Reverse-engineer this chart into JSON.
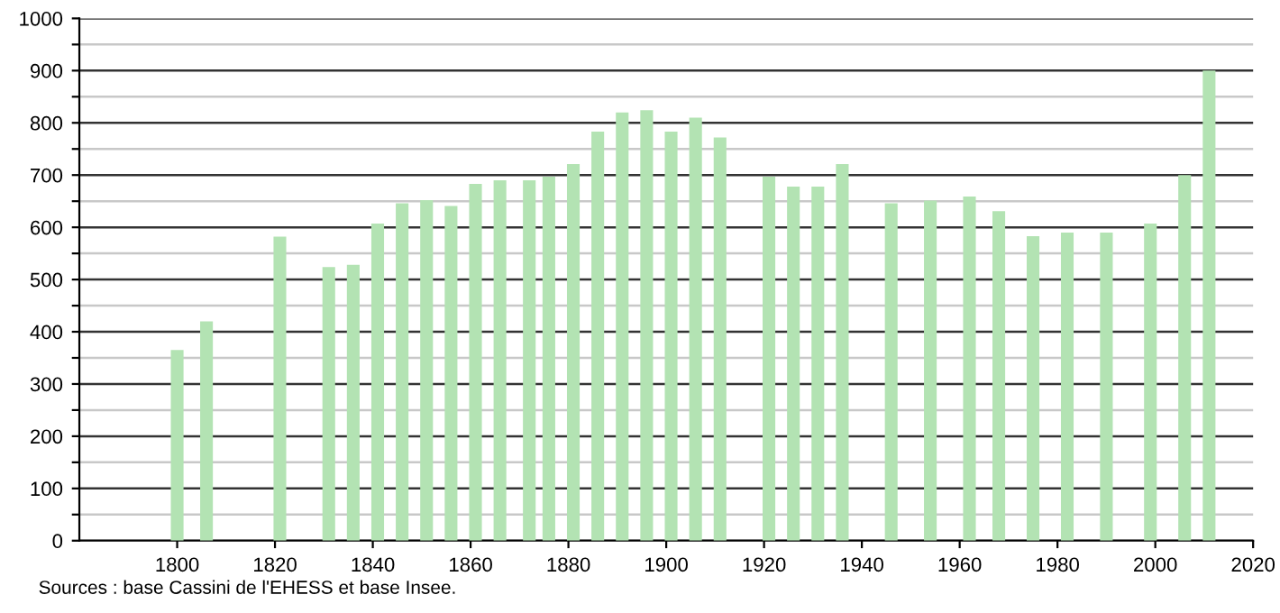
{
  "chart_data": {
    "type": "bar",
    "x": [
      1800,
      1806,
      1821,
      1831,
      1836,
      1841,
      1846,
      1851,
      1856,
      1861,
      1866,
      1872,
      1876,
      1881,
      1886,
      1891,
      1896,
      1901,
      1906,
      1911,
      1921,
      1926,
      1931,
      1936,
      1946,
      1954,
      1962,
      1968,
      1975,
      1982,
      1990,
      1999,
      2006,
      2011
    ],
    "values": [
      365,
      420,
      582,
      524,
      528,
      607,
      646,
      652,
      641,
      683,
      690,
      690,
      697,
      721,
      783,
      820,
      824,
      783,
      810,
      772,
      697,
      678,
      678,
      721,
      646,
      651,
      659,
      631,
      583,
      590,
      590,
      607,
      700,
      900
    ],
    "color": "#b3e3b3",
    "xlim": [
      1780,
      2020
    ],
    "xticks": [
      1800,
      1820,
      1840,
      1860,
      1880,
      1900,
      1920,
      1940,
      1960,
      1980,
      2000,
      2020
    ],
    "ylim": [
      0,
      1000
    ],
    "yticks": [
      0,
      {
        "value": 50,
        "label": null
      },
      100,
      {
        "value": 150,
        "label": null
      },
      200,
      {
        "value": 250,
        "label": null
      },
      300,
      {
        "value": 350,
        "label": null
      },
      400,
      {
        "value": 450,
        "label": null
      },
      500,
      {
        "value": 550,
        "label": null
      },
      600,
      {
        "value": 650,
        "label": null
      },
      700,
      {
        "value": 750,
        "label": null
      },
      800,
      {
        "value": 850,
        "label": null
      },
      900,
      {
        "value": 950,
        "label": null
      },
      1000
    ],
    "grid": "y",
    "annotations": [
      "Sources : base Cassini de l'EHESS et base Insee."
    ]
  }
}
